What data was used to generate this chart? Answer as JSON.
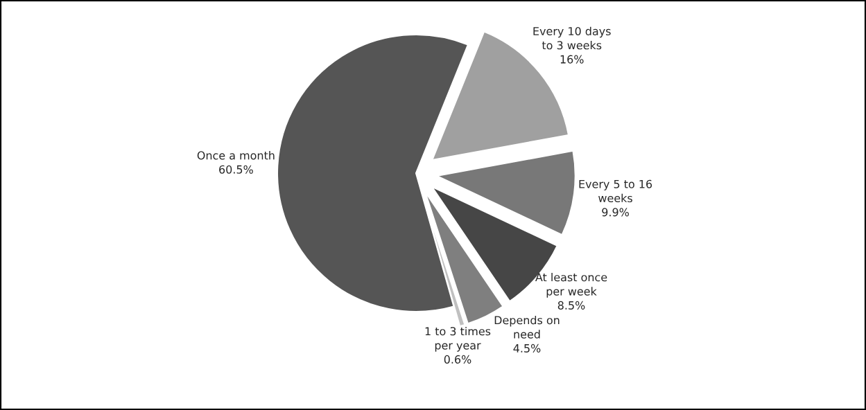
{
  "chart_data": {
    "type": "pie",
    "categories": [
      "Every 10 days\nto 3 weeks",
      "Every 5 to 16\nweeks",
      "At least once\nper week",
      "Depends on\nneed",
      "1 to 3 times\nper year",
      "Once a month"
    ],
    "values": [
      16,
      9.9,
      8.5,
      4.5,
      0.6,
      60.5
    ],
    "value_labels": [
      "16%",
      "9.9%",
      "8.5%",
      "4.5%",
      "0.6%",
      "60.5%"
    ],
    "colors": [
      "#a0a0a0",
      "#787878",
      "#464646",
      "#7f7f7f",
      "#c0c0c0",
      "#555555"
    ]
  }
}
